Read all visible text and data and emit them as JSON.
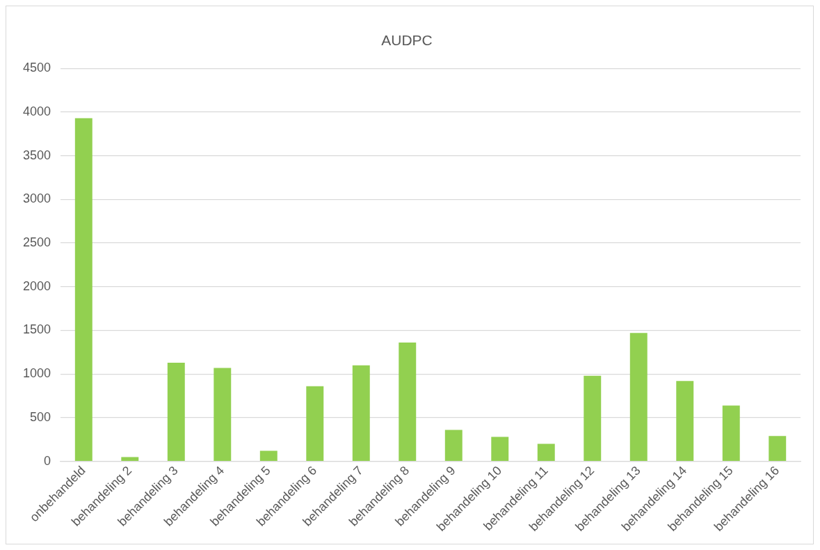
{
  "chart_data": {
    "type": "bar",
    "title": "AUDPC",
    "categories": [
      "onbehandeld",
      "behandeling 2",
      "behandeling 3",
      "behandeling 4",
      "behandeling 5",
      "behandeling 6",
      "behandeling 7",
      "behandeling 8",
      "behandeling 9",
      "behandeling 10",
      "behandeling 11",
      "behandeling 12",
      "behandeling 13",
      "behandeling 14",
      "behandeling 15",
      "behandeling 16"
    ],
    "values": [
      3930,
      50,
      1130,
      1070,
      120,
      860,
      1100,
      1360,
      360,
      280,
      200,
      980,
      1470,
      920,
      640,
      290
    ],
    "color": "#92d050",
    "ylim": [
      0,
      4500
    ],
    "yticks": [
      0,
      500,
      1000,
      1500,
      2000,
      2500,
      3000,
      3500,
      4000,
      4500
    ],
    "grid": "y",
    "legend": false
  }
}
